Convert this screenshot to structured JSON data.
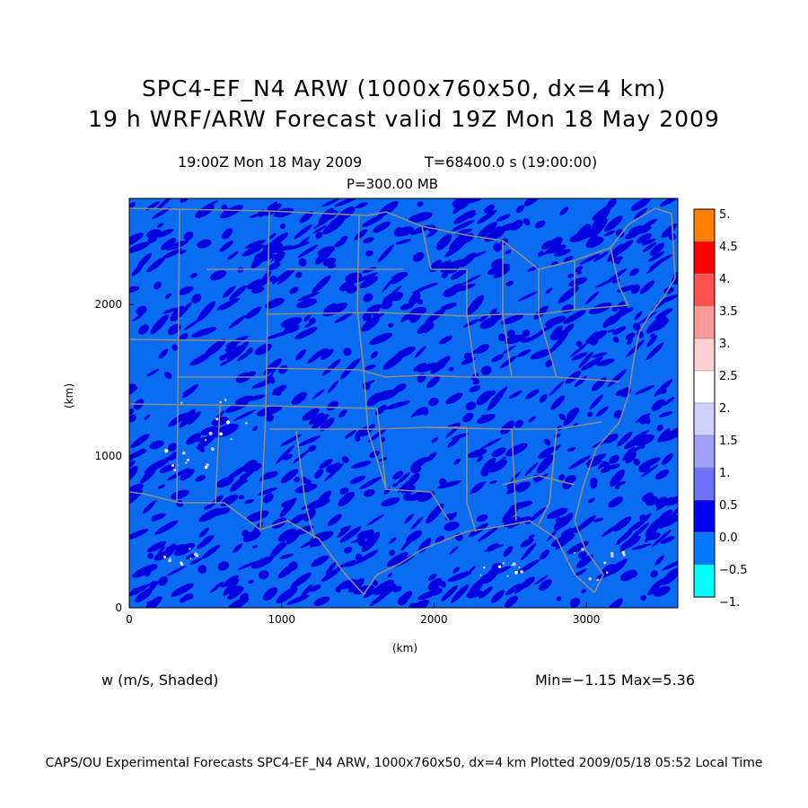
{
  "header": {
    "title_line1": "SPC4-EF_N4 ARW (1000x760x50, dx=4 km)",
    "title_line2": "19 h WRF/ARW Forecast valid 19Z Mon 18 May 2009",
    "valid_time": "19:00Z Mon 18 May 2009",
    "model_time": "T=68400.0 s (19:00:00)",
    "level": "P=300.00 MB"
  },
  "axes": {
    "x_label": "(km)",
    "y_label": "(km)",
    "x_ticks": [
      "0",
      "1000",
      "2000",
      "3000"
    ],
    "y_ticks": [
      "0",
      "1000",
      "2000"
    ],
    "x_range_km": [
      0,
      3600
    ],
    "y_range_km": [
      0,
      2700
    ]
  },
  "colorbar": {
    "labels": [
      "5.",
      "4.5",
      "4.",
      "3.5",
      "3.",
      "2.5",
      "2.",
      "1.5",
      "1.",
      "0.5",
      "0.0",
      "−0.5",
      "−1."
    ],
    "colors": [
      "#ff8000",
      "#ff0000",
      "#ff5050",
      "#ff9a9a",
      "#ffd0d0",
      "#ffffff",
      "#d0d0ff",
      "#a0a0ff",
      "#7070ff",
      "#0000ee",
      "#0078ff",
      "#00ffff"
    ]
  },
  "field": {
    "variable": "w (m/s, Shaded)",
    "stats": "Min=−1.15 Max=5.36",
    "background_color": "#0a6cf0",
    "updraft_color": "#0000e0",
    "boundary_color": "#8c8c8c"
  },
  "footer": {
    "credit": "CAPS/OU Experimental Forecasts  SPC4-EF_N4 ARW, 1000x760x50, dx=4 km  Plotted 2009/05/18 05:52 Local Time"
  }
}
